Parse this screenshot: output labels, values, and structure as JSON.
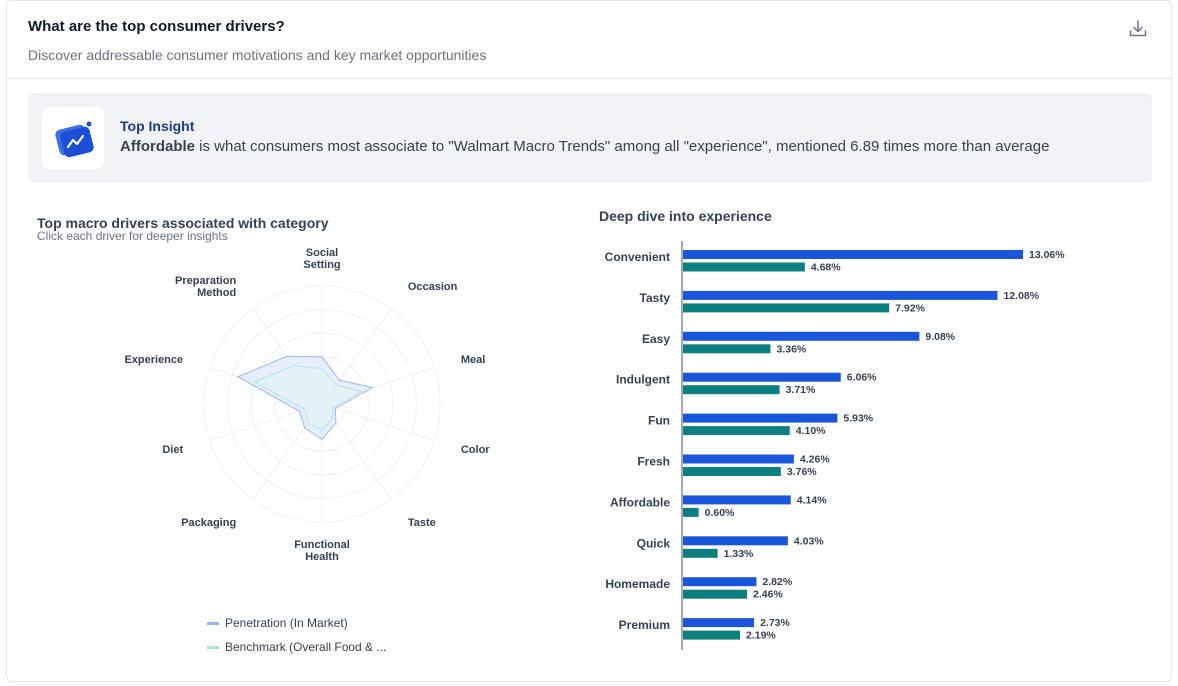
{
  "header": {
    "title": "What are the top consumer drivers?",
    "subtitle": "Discover addressable consumer motivations and key market opportunities",
    "download_icon": "download-icon"
  },
  "insight": {
    "label": "Top Insight",
    "highlight": "Affordable",
    "text": " is what consumers most associate to \"Walmart Macro Trends\" among all \"experience\", mentioned 6.89 times more than average",
    "icon": "trend-chart-icon"
  },
  "radar": {
    "title": "Top macro drivers associated with category",
    "subtitle": "Click each driver for deeper insights"
  },
  "bar": {
    "title": "Deep dive into experience"
  },
  "legend": [
    {
      "label": "Penetration (In Market)",
      "color": "#93b4f0"
    },
    {
      "label": "Benchmark (Overall Food & ...",
      "color": "#a7e3e0"
    }
  ],
  "chart_data": [
    {
      "type": "radar",
      "axes": [
        "Experience",
        "Preparation Method",
        "Social Setting",
        "Occasion",
        "Meal",
        "Color",
        "Taste",
        "Functional Health",
        "Packaging",
        "Diet"
      ],
      "series": [
        {
          "name": "Penetration (In Market)",
          "values": [
            0.75,
            0.5,
            0.4,
            0.25,
            0.45,
            0.12,
            0.2,
            0.3,
            0.25,
            0.2
          ],
          "color": "#dbe5fb"
        },
        {
          "name": "Benchmark (Overall Food & ...",
          "values": [
            0.6,
            0.4,
            0.3,
            0.2,
            0.35,
            0.1,
            0.15,
            0.22,
            0.2,
            0.15
          ],
          "color": "#dff3f3"
        }
      ],
      "rings": 5
    },
    {
      "type": "bar",
      "orientation": "horizontal",
      "categories": [
        "Convenient",
        "Tasty",
        "Easy",
        "Indulgent",
        "Fun",
        "Fresh",
        "Affordable",
        "Quick",
        "Homemade",
        "Premium"
      ],
      "series": [
        {
          "name": "Penetration (In Market)",
          "values": [
            13.06,
            12.08,
            9.08,
            6.06,
            5.93,
            4.26,
            4.14,
            4.03,
            2.82,
            2.73
          ],
          "color": "#1a56db"
        },
        {
          "name": "Benchmark (Overall Food & ...",
          "values": [
            4.68,
            7.92,
            3.36,
            3.71,
            4.1,
            3.76,
            0.6,
            1.33,
            2.46,
            2.19
          ],
          "color": "#0e7f7f"
        }
      ],
      "value_suffix": "%"
    }
  ]
}
